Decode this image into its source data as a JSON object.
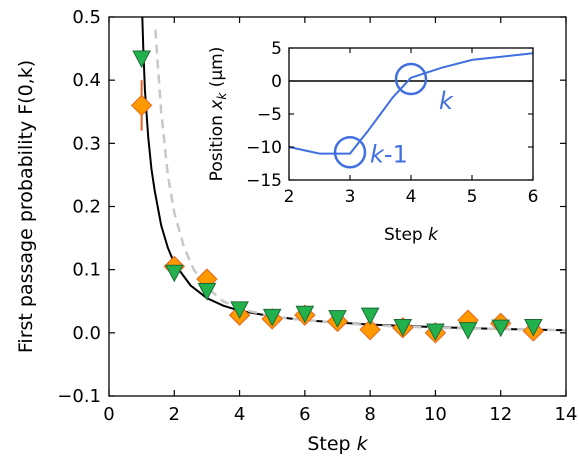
{
  "chart_data": [
    {
      "type": "scatter",
      "title": "",
      "xlabel": "Step k",
      "ylabel": "First passage probability F(0,k)",
      "xlim": [
        0,
        14
      ],
      "ylim": [
        -0.1,
        0.5
      ],
      "xticks": [
        "0",
        "2",
        "4",
        "6",
        "8",
        "10",
        "12",
        "14"
      ],
      "yticks": [
        "−0.1",
        "0.0",
        "0.1",
        "0.2",
        "0.3",
        "0.4",
        "0.5"
      ],
      "grid": false,
      "series": [
        {
          "marker": "diamond",
          "color": "#ff9900",
          "edge_color": "#e8641e",
          "points": [
            {
              "x": 1,
              "y": 0.36,
              "err": 0.04
            },
            {
              "x": 2,
              "y": 0.105
            },
            {
              "x": 3,
              "y": 0.085
            },
            {
              "x": 4,
              "y": 0.028
            },
            {
              "x": 5,
              "y": 0.022
            },
            {
              "x": 6,
              "y": 0.028
            },
            {
              "x": 7,
              "y": 0.018
            },
            {
              "x": 8,
              "y": 0.005
            },
            {
              "x": 9,
              "y": 0.008
            },
            {
              "x": 10,
              "y": 0.0
            },
            {
              "x": 11,
              "y": 0.02
            },
            {
              "x": 12,
              "y": 0.015
            },
            {
              "x": 13,
              "y": 0.003
            }
          ]
        },
        {
          "marker": "triangle-down",
          "color": "#22b14c",
          "edge_color": "#1a6b33",
          "points": [
            {
              "x": 1,
              "y": 0.435
            },
            {
              "x": 2,
              "y": 0.096
            },
            {
              "x": 3,
              "y": 0.067
            },
            {
              "x": 4,
              "y": 0.038
            },
            {
              "x": 5,
              "y": 0.026
            },
            {
              "x": 6,
              "y": 0.031
            },
            {
              "x": 7,
              "y": 0.024
            },
            {
              "x": 8,
              "y": 0.028
            },
            {
              "x": 9,
              "y": 0.01
            },
            {
              "x": 10,
              "y": 0.003
            },
            {
              "x": 11,
              "y": 0.005
            },
            {
              "x": 12,
              "y": 0.009
            },
            {
              "x": 13,
              "y": 0.01
            }
          ]
        }
      ],
      "curves": [
        {
          "style": "solid",
          "color": "#000000",
          "points": [
            [
              1.02,
              0.5
            ],
            [
              1.05,
              0.45
            ],
            [
              1.1,
              0.385
            ],
            [
              1.2,
              0.31
            ],
            [
              1.3,
              0.26
            ],
            [
              1.4,
              0.225
            ],
            [
              1.6,
              0.17
            ],
            [
              1.8,
              0.135
            ],
            [
              2.0,
              0.11
            ],
            [
              2.5,
              0.075
            ],
            [
              3.0,
              0.055
            ],
            [
              3.5,
              0.043
            ],
            [
              4.0,
              0.035
            ],
            [
              5.0,
              0.026
            ],
            [
              6.0,
              0.02
            ],
            [
              8.0,
              0.013
            ],
            [
              10.0,
              0.009
            ],
            [
              12.0,
              0.006
            ],
            [
              14.0,
              0.004
            ]
          ]
        },
        {
          "style": "dashed",
          "color": "#c8c8c8",
          "points": [
            [
              1.42,
              0.48
            ],
            [
              1.5,
              0.42
            ],
            [
              1.6,
              0.35
            ],
            [
              1.8,
              0.25
            ],
            [
              2.0,
              0.19
            ],
            [
              2.3,
              0.135
            ],
            [
              2.6,
              0.1
            ],
            [
              3.0,
              0.072
            ],
            [
              3.5,
              0.05
            ],
            [
              4.0,
              0.038
            ],
            [
              5.0,
              0.026
            ],
            [
              6.0,
              0.02
            ],
            [
              8.0,
              0.012
            ],
            [
              10.0,
              0.008
            ],
            [
              12.0,
              0.006
            ],
            [
              14.0,
              0.004
            ]
          ]
        }
      ]
    },
    {
      "type": "line",
      "title": "",
      "xlabel": "Step k",
      "ylabel": "Position x_k (µm)",
      "xlim": [
        2,
        6
      ],
      "ylim": [
        -15,
        5
      ],
      "xticks": [
        "2",
        "3",
        "4",
        "5",
        "6"
      ],
      "yticks": [
        "−15",
        "−10",
        "−5",
        "0",
        "5"
      ],
      "hline_y": 0,
      "series": [
        {
          "color": "#3f6fe0",
          "x": [
            2.0,
            2.5,
            3.0,
            3.3,
            3.7,
            4.0,
            4.5,
            5.0,
            6.0
          ],
          "y": [
            -10.0,
            -11.0,
            -11.0,
            -7.5,
            -2.5,
            0.5,
            2.0,
            3.2,
            4.2
          ]
        }
      ],
      "circles": [
        {
          "x": 3.0,
          "y": -10.8,
          "label": "k-1"
        },
        {
          "x": 4.0,
          "y": 0.3,
          "label": "k"
        }
      ]
    }
  ]
}
